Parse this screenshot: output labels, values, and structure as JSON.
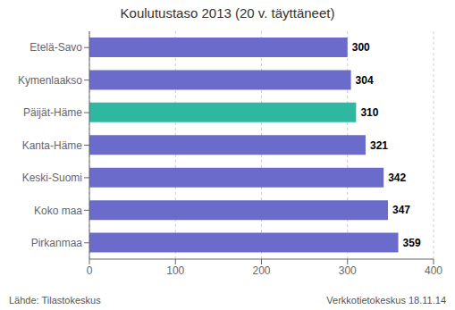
{
  "chart_data": {
    "type": "bar",
    "title": "Koulutustaso  2013 (20 v. täyttäneet)",
    "orientation": "horizontal",
    "categories": [
      "Etelä-Savo",
      "Kymenlaakso",
      "Päijät-Häme",
      "Kanta-Häme",
      "Keski-Suomi",
      "Koko maa",
      "Pirkanmaa"
    ],
    "values": [
      300,
      304,
      310,
      321,
      342,
      347,
      359
    ],
    "colors": [
      "#6b6bcc",
      "#6b6bcc",
      "#2eb8a0",
      "#6b6bcc",
      "#6b6bcc",
      "#6b6bcc",
      "#6b6bcc"
    ],
    "xlim": [
      0,
      400
    ],
    "xticks": [
      0,
      100,
      200,
      300,
      400
    ],
    "grid": true,
    "data_labels": true,
    "annotations": [
      "Lähde: Tilastokeskus",
      "Verkkotietokeskus 18.11.14"
    ]
  }
}
